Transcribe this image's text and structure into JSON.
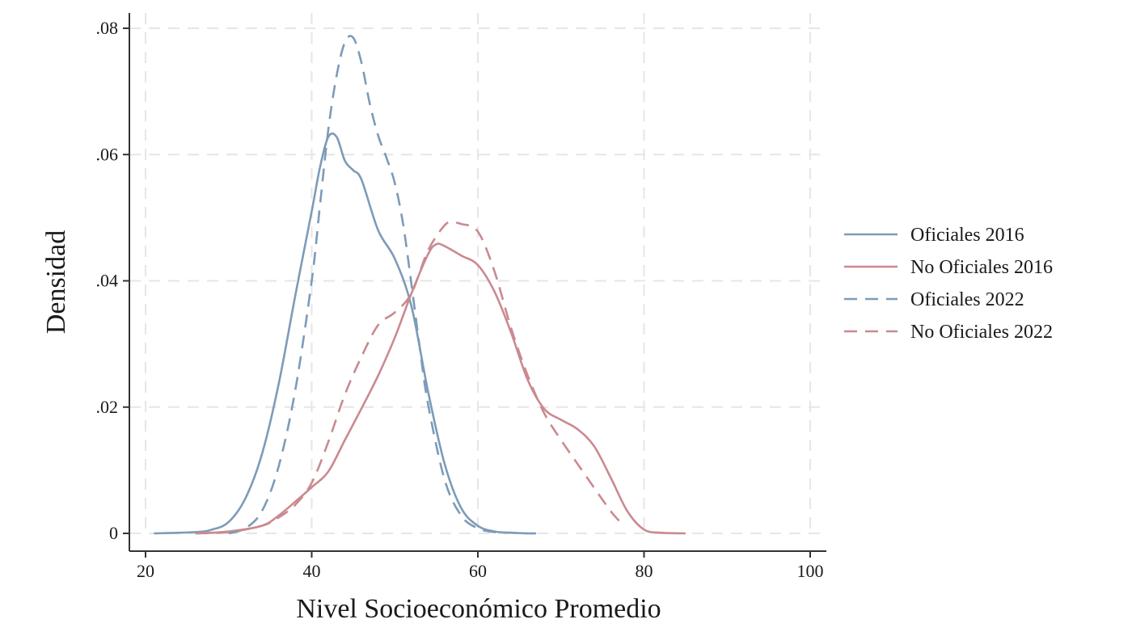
{
  "chart_data": {
    "type": "line",
    "xlabel": "Nivel Socioeconómico Promedio",
    "ylabel": "Densidad",
    "xlim": [
      20,
      100
    ],
    "ylim": [
      0,
      0.08
    ],
    "x_ticks": [
      {
        "value": 20,
        "label": "20"
      },
      {
        "value": 40,
        "label": "40"
      },
      {
        "value": 60,
        "label": "60"
      },
      {
        "value": 80,
        "label": "80"
      },
      {
        "value": 100,
        "label": "100"
      }
    ],
    "y_ticks": [
      {
        "value": 0,
        "label": "0"
      },
      {
        "value": 0.02,
        "label": ".02"
      },
      {
        "value": 0.04,
        "label": ".04"
      },
      {
        "value": 0.06,
        "label": ".06"
      },
      {
        "value": 0.08,
        "label": ".08"
      }
    ],
    "grid": true,
    "legend_position": "right",
    "series": [
      {
        "name": "Oficiales 2016",
        "color": "#7d9bb8",
        "dash": "solid",
        "x": [
          21,
          26,
          28,
          30,
          32,
          34,
          36,
          38,
          40,
          41,
          42,
          43,
          44,
          45,
          46,
          48,
          50,
          52,
          54,
          56,
          58,
          60,
          62,
          64,
          66
        ],
        "y": [
          0,
          0.0002,
          0.0006,
          0.0018,
          0.0055,
          0.0125,
          0.0235,
          0.0375,
          0.051,
          0.058,
          0.0628,
          0.0628,
          0.059,
          0.0575,
          0.056,
          0.048,
          0.0435,
          0.036,
          0.0225,
          0.011,
          0.004,
          0.0012,
          0.0003,
          0.0001,
          0
        ]
      },
      {
        "name": "No Oficiales 2016",
        "color": "#c98a8f",
        "dash": "solid",
        "x": [
          26,
          30,
          34,
          36,
          38,
          40,
          42,
          44,
          46,
          48,
          50,
          52,
          54,
          55,
          56,
          58,
          60,
          62,
          64,
          66,
          68,
          70,
          72,
          74,
          76,
          78,
          80,
          82,
          85
        ],
        "y": [
          0,
          0.0003,
          0.0012,
          0.0028,
          0.005,
          0.0073,
          0.0098,
          0.0148,
          0.0198,
          0.025,
          0.031,
          0.038,
          0.0442,
          0.0458,
          0.0455,
          0.044,
          0.0425,
          0.0383,
          0.0318,
          0.0243,
          0.0197,
          0.018,
          0.0165,
          0.0138,
          0.0088,
          0.0035,
          0.0006,
          0.0001,
          0
        ]
      },
      {
        "name": "Oficiales 2022",
        "color": "#7d9bb8",
        "dash": "dashed",
        "x": [
          30,
          32,
          34,
          36,
          38,
          40,
          41,
          42,
          43,
          44,
          45,
          46,
          47,
          48,
          49,
          50,
          51,
          52,
          53,
          54,
          56,
          58,
          60,
          62,
          64,
          66,
          67
        ],
        "y": [
          0,
          0.0008,
          0.0035,
          0.0105,
          0.0225,
          0.04,
          0.052,
          0.064,
          0.0725,
          0.0778,
          0.0785,
          0.0745,
          0.068,
          0.063,
          0.0595,
          0.0555,
          0.049,
          0.0395,
          0.0295,
          0.0205,
          0.0085,
          0.0028,
          0.0008,
          0.0002,
          0.0001,
          0,
          0
        ]
      },
      {
        "name": "No Oficiales 2022",
        "color": "#c98a8f",
        "dash": "dashed",
        "x": [
          26,
          30,
          34,
          36,
          38,
          40,
          42,
          44,
          46,
          48,
          50,
          52,
          54,
          56,
          57,
          58,
          60,
          62,
          64,
          66,
          68,
          70,
          72,
          74,
          76,
          77
        ],
        "y": [
          0,
          0.0002,
          0.0012,
          0.0025,
          0.0045,
          0.008,
          0.0145,
          0.022,
          0.028,
          0.033,
          0.035,
          0.038,
          0.0448,
          0.0488,
          0.0492,
          0.049,
          0.0478,
          0.0415,
          0.0325,
          0.025,
          0.019,
          0.0148,
          0.011,
          0.0072,
          0.0035,
          0.002
        ]
      }
    ]
  }
}
